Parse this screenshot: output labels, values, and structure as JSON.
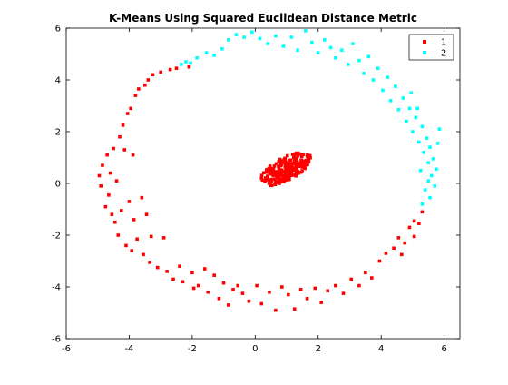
{
  "chart_data": {
    "type": "scatter",
    "title": "K-Means Using Squared Euclidean Distance Metric",
    "xlabel": "",
    "ylabel": "",
    "xlim": [
      -6,
      6.5
    ],
    "ylim": [
      -6,
      6
    ],
    "xticks": [
      -6,
      -4,
      -2,
      0,
      2,
      4,
      6
    ],
    "yticks": [
      -6,
      -4,
      -2,
      0,
      2,
      4,
      6
    ],
    "grid": false,
    "legend_position": "top-right",
    "series": [
      {
        "name": "1",
        "color": "#ff0000",
        "points": [
          [
            -4.95,
            0.3
          ],
          [
            -4.9,
            -0.1
          ],
          [
            -4.85,
            0.7
          ],
          [
            -4.75,
            -0.9
          ],
          [
            -4.7,
            1.1
          ],
          [
            -4.65,
            -0.45
          ],
          [
            -4.6,
            0.4
          ],
          [
            -4.55,
            -1.2
          ],
          [
            -4.5,
            1.35
          ],
          [
            -4.45,
            -1.5
          ],
          [
            -4.4,
            0.1
          ],
          [
            -4.35,
            -2.0
          ],
          [
            -4.3,
            1.8
          ],
          [
            -4.25,
            -1.05
          ],
          [
            -4.2,
            2.25
          ],
          [
            -4.15,
            1.3
          ],
          [
            -4.1,
            -2.4
          ],
          [
            -4.05,
            2.7
          ],
          [
            -4.0,
            -0.7
          ],
          [
            -3.95,
            2.9
          ],
          [
            -3.92,
            -2.6
          ],
          [
            -3.88,
            1.1
          ],
          [
            -3.85,
            -1.4
          ],
          [
            -3.8,
            3.4
          ],
          [
            -3.75,
            -2.15
          ],
          [
            -3.7,
            3.65
          ],
          [
            -3.6,
            -0.55
          ],
          [
            -3.55,
            -2.75
          ],
          [
            -3.5,
            3.8
          ],
          [
            -3.45,
            -1.2
          ],
          [
            -3.4,
            4.0
          ],
          [
            -3.35,
            -3.05
          ],
          [
            -3.3,
            -2.05
          ],
          [
            -3.25,
            4.2
          ],
          [
            -3.1,
            -3.25
          ],
          [
            -3.0,
            4.3
          ],
          [
            -2.9,
            -2.1
          ],
          [
            -2.8,
            -3.4
          ],
          [
            -2.7,
            4.4
          ],
          [
            -2.6,
            -3.7
          ],
          [
            -2.5,
            4.45
          ],
          [
            -2.4,
            -3.2
          ],
          [
            -2.3,
            -3.8
          ],
          [
            -2.1,
            4.5
          ],
          [
            -2.0,
            -3.45
          ],
          [
            -1.95,
            -4.05
          ],
          [
            -1.8,
            -3.95
          ],
          [
            -1.6,
            -3.3
          ],
          [
            -1.5,
            -4.2
          ],
          [
            -1.3,
            -3.55
          ],
          [
            -1.15,
            -4.45
          ],
          [
            -1.0,
            -3.85
          ],
          [
            -0.85,
            -4.7
          ],
          [
            -0.7,
            -4.1
          ],
          [
            -0.55,
            -3.95
          ],
          [
            -0.4,
            -4.25
          ],
          [
            -0.2,
            -4.55
          ],
          [
            0.05,
            -3.95
          ],
          [
            0.2,
            -4.65
          ],
          [
            0.45,
            -4.2
          ],
          [
            0.65,
            -4.9
          ],
          [
            0.85,
            -4.0
          ],
          [
            1.05,
            -4.3
          ],
          [
            1.25,
            -4.85
          ],
          [
            1.45,
            -4.1
          ],
          [
            1.65,
            -4.45
          ],
          [
            1.9,
            -4.05
          ],
          [
            2.1,
            -4.6
          ],
          [
            2.3,
            -4.15
          ],
          [
            2.55,
            -3.95
          ],
          [
            2.8,
            -4.25
          ],
          [
            3.05,
            -3.7
          ],
          [
            3.3,
            -3.95
          ],
          [
            3.5,
            -3.45
          ],
          [
            3.7,
            -3.65
          ],
          [
            3.95,
            -3.0
          ],
          [
            4.15,
            -2.7
          ],
          [
            4.4,
            -2.5
          ],
          [
            4.55,
            -2.1
          ],
          [
            4.75,
            -2.3
          ],
          [
            4.9,
            -1.7
          ],
          [
            5.05,
            -1.45
          ],
          [
            5.2,
            -1.55
          ],
          [
            5.3,
            -1.1
          ],
          [
            5.05,
            -2.05
          ],
          [
            4.65,
            -2.75
          ]
        ],
        "core": {
          "center": [
            0.95,
            0.55
          ],
          "count": 220
        }
      },
      {
        "name": "2",
        "color": "#00ffff",
        "points": [
          [
            -2.35,
            4.6
          ],
          [
            -2.2,
            4.7
          ],
          [
            -2.05,
            4.65
          ],
          [
            -1.85,
            4.85
          ],
          [
            -1.55,
            5.05
          ],
          [
            -1.3,
            4.95
          ],
          [
            -1.05,
            5.2
          ],
          [
            -0.85,
            5.55
          ],
          [
            -0.6,
            5.75
          ],
          [
            -0.35,
            5.65
          ],
          [
            -0.1,
            5.85
          ],
          [
            0.15,
            5.6
          ],
          [
            0.4,
            5.4
          ],
          [
            0.65,
            5.7
          ],
          [
            0.9,
            5.3
          ],
          [
            1.15,
            5.65
          ],
          [
            1.35,
            5.15
          ],
          [
            1.6,
            5.9
          ],
          [
            1.8,
            5.45
          ],
          [
            2.0,
            5.05
          ],
          [
            2.2,
            5.55
          ],
          [
            2.4,
            5.25
          ],
          [
            2.55,
            4.85
          ],
          [
            2.75,
            5.15
          ],
          [
            2.95,
            4.6
          ],
          [
            3.1,
            5.4
          ],
          [
            3.3,
            4.75
          ],
          [
            3.45,
            4.25
          ],
          [
            3.6,
            4.9
          ],
          [
            3.75,
            4.0
          ],
          [
            3.9,
            4.45
          ],
          [
            4.05,
            3.6
          ],
          [
            4.2,
            4.1
          ],
          [
            4.3,
            3.2
          ],
          [
            4.45,
            3.75
          ],
          [
            4.55,
            2.85
          ],
          [
            4.7,
            3.3
          ],
          [
            4.8,
            2.4
          ],
          [
            4.9,
            2.9
          ],
          [
            5.0,
            2.0
          ],
          [
            5.1,
            2.55
          ],
          [
            5.2,
            1.6
          ],
          [
            5.3,
            2.2
          ],
          [
            5.35,
            1.2
          ],
          [
            5.45,
            1.75
          ],
          [
            5.5,
            0.8
          ],
          [
            5.55,
            1.4
          ],
          [
            5.6,
            0.3
          ],
          [
            5.65,
            0.95
          ],
          [
            5.7,
            -0.1
          ],
          [
            5.75,
            0.55
          ],
          [
            5.55,
            -0.55
          ],
          [
            5.8,
            1.55
          ],
          [
            5.85,
            2.1
          ],
          [
            5.4,
            -0.25
          ],
          [
            5.25,
            0.5
          ],
          [
            5.3,
            -0.8
          ],
          [
            5.5,
            0.1
          ],
          [
            5.15,
            2.9
          ],
          [
            4.95,
            3.5
          ]
        ]
      }
    ]
  }
}
